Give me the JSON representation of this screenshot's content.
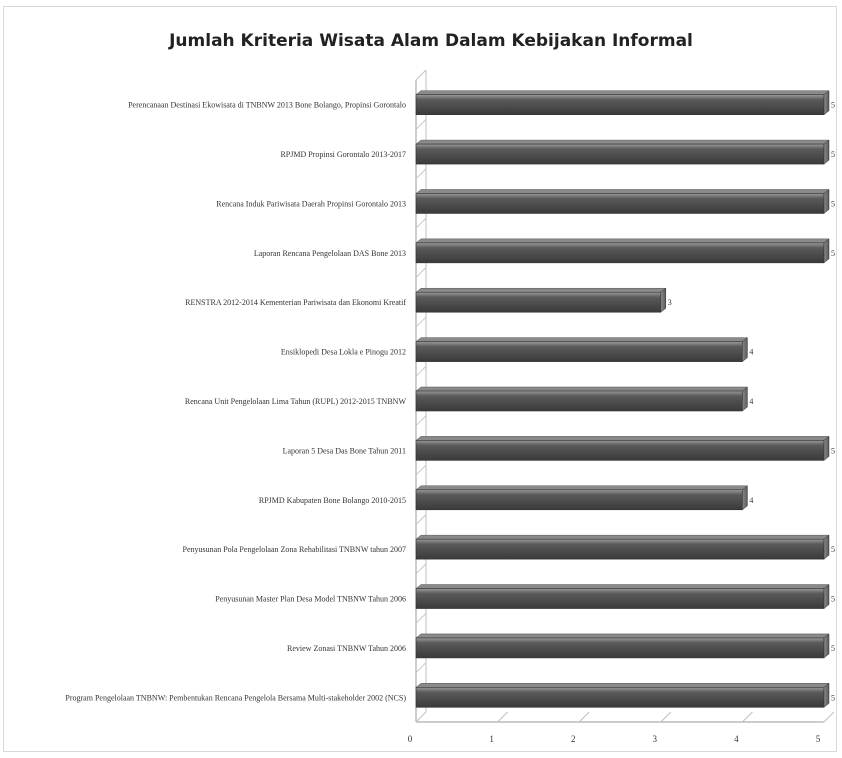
{
  "chart_data": {
    "type": "bar",
    "orientation": "horizontal",
    "title": "Jumlah Kriteria Wisata Alam Dalam Kebijakan Informal",
    "categories": [
      "Perencanaan Destinasi Ekowisata di TNBNW 2013 Bone Bolango, Propinsi Gorontalo",
      "RPJMD Propinsi Gorontalo 2013-2017",
      "Rencana Induk Pariwisata Daerah Propinsi Gorontalo 2013",
      "Laporan Rencana Pengelolaan DAS Bone 2013",
      "RENSTRA 2012-2014 Kementerian Pariwisata dan Ekonomi Kreatif",
      "Ensiklopedi Desa Lokla e Pinogu 2012",
      "Rencana Unit Pengelolaan Lima Tahun (RUPL) 2012-2015 TNBNW",
      "Laporan 5 Desa Das Bone Tahun 2011",
      "RPJMD Kabupaten Bone Bolango 2010-2015",
      "Penyusunan Pola Pengelolaan Zona Rehabilitasi TNBNW tahun 2007",
      "Penyusunan Master Plan Desa Model TNBNW Tahun 2006",
      "Review Zonasi TNBNW Tahun 2006",
      "Program Pengelolaan TNBNW: Pembentukan Rencana Pengelola Bersama Multi-stakeholder 2002 (NCS)"
    ],
    "values": [
      5,
      5,
      5,
      5,
      3,
      4,
      4,
      5,
      4,
      5,
      5,
      5,
      5
    ],
    "data_labels": [
      "5",
      "5",
      "5",
      "5",
      "3",
      "4",
      "4",
      "5",
      "4",
      "5",
      "5",
      "5",
      "5"
    ],
    "xlim": [
      0,
      5
    ],
    "x_ticks": [
      "0",
      "1",
      "2",
      "3",
      "4",
      "5"
    ],
    "grid": false,
    "legend": "none",
    "bar_color": "#4a4a4a",
    "bar_top_color": "#8a8a8a"
  }
}
